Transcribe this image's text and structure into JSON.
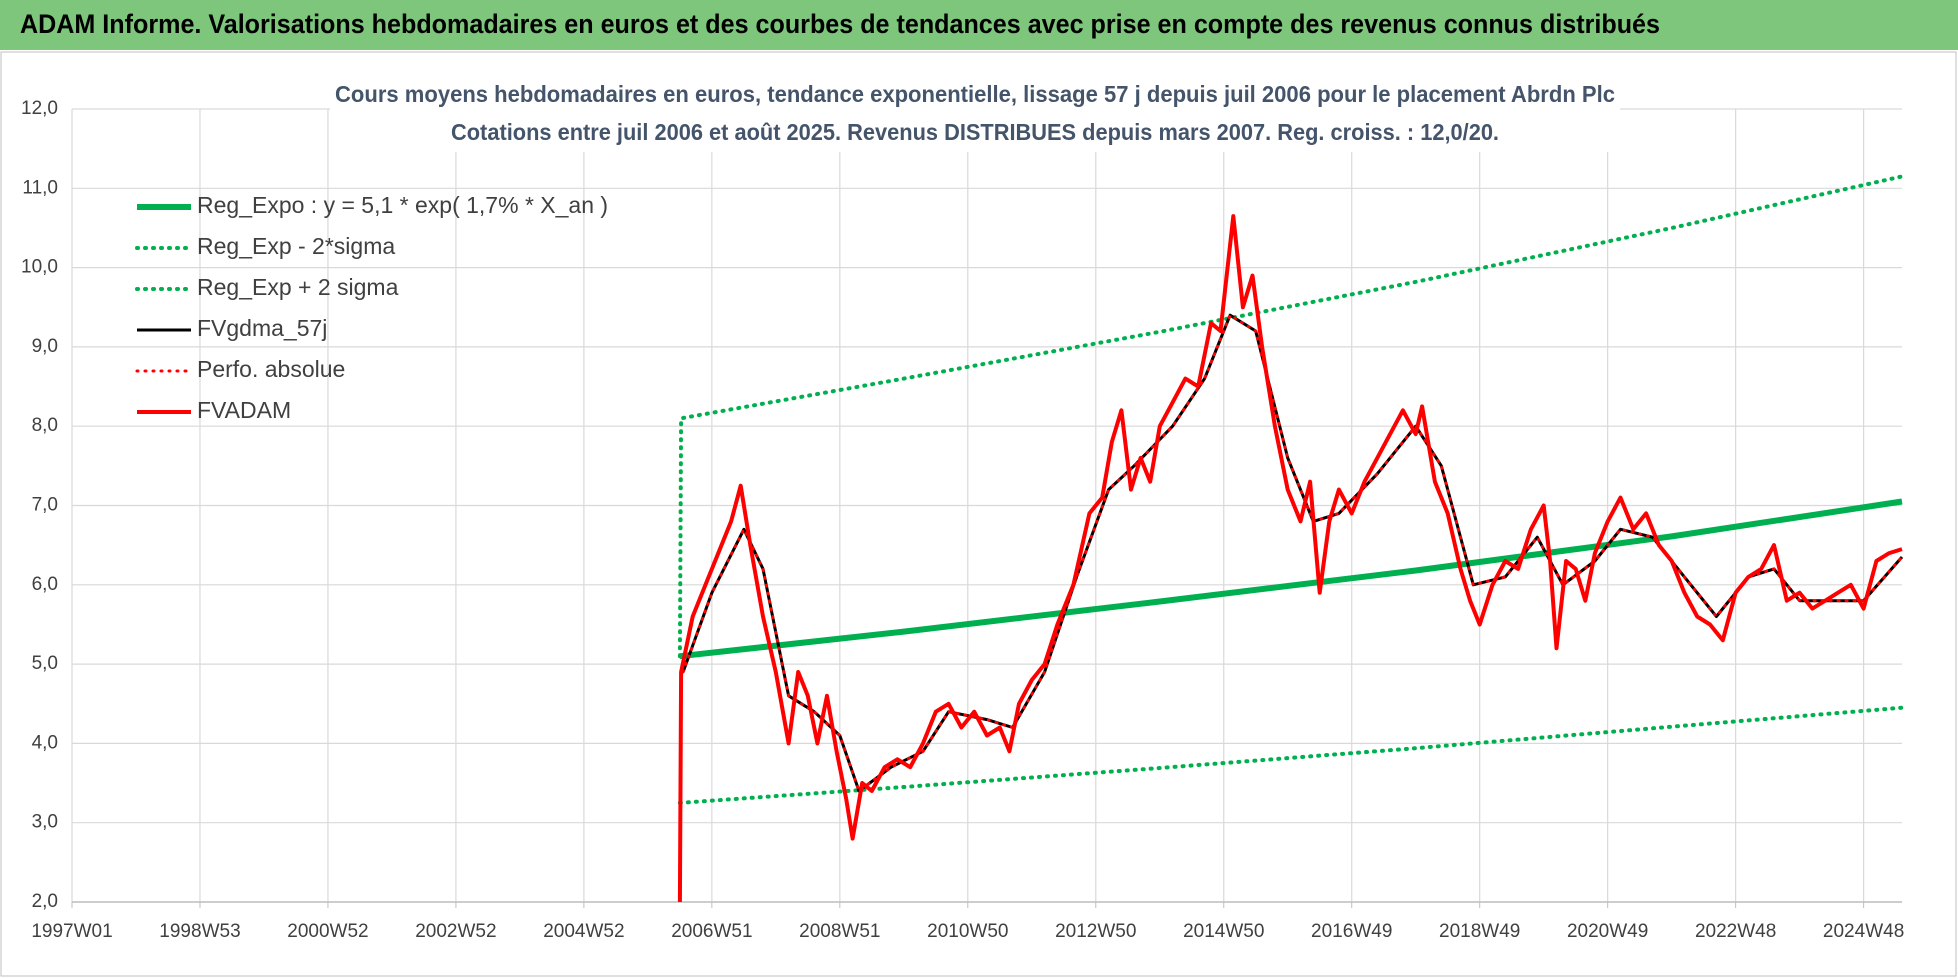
{
  "page_title": "ADAM Informe. Valorisations hebdomadaires en euros et des courbes de tendances avec prise en compte des revenus connus distribués",
  "chart_data": {
    "type": "line",
    "title": "Cours moyens hebdomadaires en euros, tendance exponentielle, lissage 57 j depuis juil 2006 pour le placement Abrdn Plc",
    "subtitle": "Cotations entre juil 2006 et août 2025. Revenus DISTRIBUES depuis mars 2007. Reg. croiss. : 12,0/20.",
    "xlim": [
      1997,
      2025.6
    ],
    "xticks": [
      {
        "value": 1997,
        "label": "1997W01"
      },
      {
        "value": 1999,
        "label": "1998W53"
      },
      {
        "value": 2001,
        "label": "2000W52"
      },
      {
        "value": 2003,
        "label": "2002W52"
      },
      {
        "value": 2005,
        "label": "2004W52"
      },
      {
        "value": 2007,
        "label": "2006W51"
      },
      {
        "value": 2009,
        "label": "2008W51"
      },
      {
        "value": 2011,
        "label": "2010W50"
      },
      {
        "value": 2013,
        "label": "2012W50"
      },
      {
        "value": 2015,
        "label": "2014W50"
      },
      {
        "value": 2017,
        "label": "2016W49"
      },
      {
        "value": 2019,
        "label": "2018W49"
      },
      {
        "value": 2021,
        "label": "2020W49"
      },
      {
        "value": 2023,
        "label": "2022W48"
      },
      {
        "value": 2025,
        "label": "2024W48"
      }
    ],
    "ylim": [
      2,
      12
    ],
    "yticks": [
      {
        "value": 2,
        "label": "2,0"
      },
      {
        "value": 3,
        "label": "3,0"
      },
      {
        "value": 4,
        "label": "4,0"
      },
      {
        "value": 5,
        "label": "5,0"
      },
      {
        "value": 6,
        "label": "6,0"
      },
      {
        "value": 7,
        "label": "7,0"
      },
      {
        "value": 8,
        "label": "8,0"
      },
      {
        "value": 9,
        "label": "9,0"
      },
      {
        "value": 10,
        "label": "10,0"
      },
      {
        "value": 11,
        "label": "11,0"
      },
      {
        "value": 12,
        "label": "12,0"
      }
    ],
    "grid": true,
    "legend": "upper left",
    "series": [
      {
        "name": "Reg_Expo : y = 5,1 * exp( 1,7% *  X_an )",
        "color": "#00b050",
        "dotted": false,
        "width": 6,
        "x": [
          2006.5,
          2010,
          2014,
          2018,
          2022,
          2025.6
        ],
        "values": [
          5.1,
          5.41,
          5.79,
          6.18,
          6.61,
          7.05
        ]
      },
      {
        "name": "Reg_Exp - 2*sigma",
        "color": "#00b050",
        "dotted": true,
        "width": 4,
        "x": [
          2006.5,
          2010,
          2014,
          2018,
          2022,
          2025.6
        ],
        "values": [
          3.25,
          3.45,
          3.69,
          3.94,
          4.21,
          4.45
        ]
      },
      {
        "name": "Reg_Exp + 2 sigma",
        "color": "#00b050",
        "dotted": true,
        "width": 4,
        "x": [
          2006.5,
          2006.52,
          2010,
          2014,
          2018,
          2022,
          2025.6
        ],
        "values": [
          5.1,
          8.1,
          8.6,
          9.19,
          9.82,
          10.5,
          11.15
        ]
      },
      {
        "name": "FVgdma_57j",
        "color": "#000000",
        "dotted": false,
        "width": 3,
        "x": [
          2006.55,
          2007.0,
          2007.5,
          2007.8,
          2008.2,
          2008.6,
          2009.0,
          2009.3,
          2009.8,
          2010.3,
          2010.7,
          2011.3,
          2011.7,
          2012.2,
          2012.7,
          2013.2,
          2013.6,
          2014.2,
          2014.7,
          2015.1,
          2015.5,
          2016.0,
          2016.4,
          2016.8,
          2017.4,
          2018.0,
          2018.4,
          2018.9,
          2019.4,
          2019.9,
          2020.3,
          2020.8,
          2021.2,
          2021.7,
          2022.2,
          2022.7,
          2023.2,
          2023.6,
          2024.0,
          2024.6,
          2025.0,
          2025.6
        ],
        "values": [
          4.9,
          5.9,
          6.7,
          6.2,
          4.6,
          4.4,
          4.1,
          3.4,
          3.7,
          3.9,
          4.4,
          4.3,
          4.2,
          4.9,
          6.1,
          7.2,
          7.5,
          8.0,
          8.6,
          9.4,
          9.2,
          7.6,
          6.8,
          6.9,
          7.4,
          8.0,
          7.5,
          6.0,
          6.1,
          6.6,
          6.0,
          6.3,
          6.7,
          6.6,
          6.1,
          5.6,
          6.1,
          6.2,
          5.8,
          5.8,
          5.8,
          6.35
        ]
      },
      {
        "name": "Perfo. absolue",
        "color": "#ff0000",
        "dotted": true,
        "width": 3,
        "x": [
          2006.55,
          2007.0,
          2007.5,
          2007.8,
          2008.2,
          2008.6,
          2009.0,
          2009.3,
          2009.8,
          2010.3,
          2010.7,
          2011.3,
          2011.7,
          2012.2,
          2012.7,
          2013.2,
          2013.6,
          2014.2,
          2014.7,
          2015.1,
          2015.5,
          2016.0,
          2016.4,
          2016.8,
          2017.4,
          2018.0,
          2018.4,
          2018.9,
          2019.4,
          2019.9,
          2020.3,
          2020.8,
          2021.2,
          2021.7,
          2022.2,
          2022.7,
          2023.2,
          2023.6,
          2024.0,
          2024.6,
          2025.0,
          2025.6
        ],
        "values": [
          4.9,
          5.9,
          6.7,
          6.2,
          4.6,
          4.4,
          4.1,
          3.4,
          3.7,
          3.9,
          4.4,
          4.3,
          4.2,
          4.9,
          6.1,
          7.2,
          7.5,
          8.0,
          8.6,
          9.4,
          9.2,
          7.6,
          6.8,
          6.9,
          7.4,
          8.0,
          7.5,
          6.0,
          6.1,
          6.6,
          6.0,
          6.3,
          6.7,
          6.6,
          6.1,
          5.6,
          6.1,
          6.2,
          5.8,
          5.8,
          5.8,
          6.35
        ]
      },
      {
        "name": "FVADAM",
        "color": "#ff0000",
        "dotted": false,
        "width": 4,
        "x": [
          2006.5,
          2006.52,
          2006.7,
          2006.9,
          2007.1,
          2007.3,
          2007.45,
          2007.6,
          2007.8,
          2008.0,
          2008.2,
          2008.35,
          2008.5,
          2008.65,
          2008.8,
          2008.95,
          2009.1,
          2009.2,
          2009.35,
          2009.5,
          2009.7,
          2009.9,
          2010.1,
          2010.3,
          2010.5,
          2010.7,
          2010.9,
          2011.1,
          2011.3,
          2011.5,
          2011.65,
          2011.8,
          2012.0,
          2012.2,
          2012.4,
          2012.65,
          2012.9,
          2013.1,
          2013.25,
          2013.4,
          2013.55,
          2013.7,
          2013.85,
          2014.0,
          2014.2,
          2014.4,
          2014.6,
          2014.8,
          2014.95,
          2015.15,
          2015.3,
          2015.45,
          2015.6,
          2015.8,
          2016.0,
          2016.2,
          2016.35,
          2016.5,
          2016.65,
          2016.8,
          2017.0,
          2017.2,
          2017.4,
          2017.6,
          2017.8,
          2018.0,
          2018.1,
          2018.3,
          2018.5,
          2018.7,
          2018.85,
          2019.0,
          2019.2,
          2019.4,
          2019.6,
          2019.8,
          2020.0,
          2020.1,
          2020.2,
          2020.35,
          2020.5,
          2020.65,
          2020.8,
          2021.0,
          2021.2,
          2021.4,
          2021.6,
          2021.8,
          2022.0,
          2022.2,
          2022.4,
          2022.6,
          2022.8,
          2023.0,
          2023.2,
          2023.4,
          2023.6,
          2023.8,
          2024.0,
          2024.2,
          2024.4,
          2024.6,
          2024.8,
          2025.0,
          2025.2,
          2025.4,
          2025.6
        ],
        "values": [
          2.0,
          4.9,
          5.6,
          6.0,
          6.4,
          6.8,
          7.25,
          6.5,
          5.6,
          4.9,
          4.0,
          4.9,
          4.6,
          4.0,
          4.6,
          3.9,
          3.3,
          2.8,
          3.5,
          3.4,
          3.7,
          3.8,
          3.7,
          4.0,
          4.4,
          4.5,
          4.2,
          4.4,
          4.1,
          4.2,
          3.9,
          4.5,
          4.8,
          5.0,
          5.5,
          6.0,
          6.9,
          7.1,
          7.8,
          8.2,
          7.2,
          7.6,
          7.3,
          8.0,
          8.3,
          8.6,
          8.5,
          9.3,
          9.2,
          10.65,
          9.5,
          9.9,
          9.0,
          8.0,
          7.2,
          6.8,
          7.3,
          5.9,
          6.8,
          7.2,
          6.9,
          7.3,
          7.6,
          7.9,
          8.2,
          7.9,
          8.25,
          7.3,
          6.9,
          6.2,
          5.8,
          5.5,
          6.0,
          6.3,
          6.2,
          6.7,
          7.0,
          6.3,
          5.2,
          6.3,
          6.2,
          5.8,
          6.4,
          6.8,
          7.1,
          6.7,
          6.9,
          6.5,
          6.3,
          5.9,
          5.6,
          5.5,
          5.3,
          5.9,
          6.1,
          6.2,
          6.5,
          5.8,
          5.9,
          5.7,
          5.8,
          5.9,
          6.0,
          5.7,
          6.3,
          6.4,
          6.45
        ]
      }
    ]
  }
}
